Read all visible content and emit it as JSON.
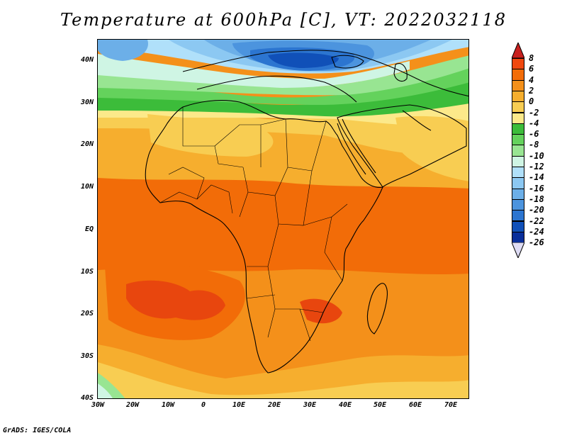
{
  "title": "Temperature at 600hPa [C], VT: 2022032118",
  "credit": "GrADS: IGES/COLA",
  "lat_labels": [
    "40N",
    "30N",
    "20N",
    "10N",
    "EQ",
    "10S",
    "20S",
    "30S",
    "40S"
  ],
  "lon_labels": [
    "30W",
    "20W",
    "10W",
    "0",
    "10E",
    "20E",
    "30E",
    "40E",
    "50E",
    "60E",
    "70E"
  ],
  "extent": {
    "lon_min": -30,
    "lon_max": 75,
    "lat_min": -40,
    "lat_max": 45
  },
  "colorbar": {
    "labels": [
      "8",
      "6",
      "4",
      "2",
      "0",
      "-2",
      "-4",
      "-6",
      "-8",
      "-10",
      "-12",
      "-14",
      "-16",
      "-18",
      "-20",
      "-22",
      "-24",
      "-26"
    ],
    "colors": [
      "#c8201e",
      "#f0480f",
      "#f26c08",
      "#f4901a",
      "#f6ae2e",
      "#f8cd52",
      "#fce98a",
      "#3cbc3a",
      "#64d25c",
      "#98e592",
      "#cff5e4",
      "#b0e0fa",
      "#8cc8f2",
      "#6cafe8",
      "#4c94de",
      "#2c75d0",
      "#1050b8",
      "#082e9a",
      "#0a1a6e"
    ],
    "over_color": "#c8201e",
    "under_color": "#dedcf4"
  },
  "field_colors": {
    "background": "#f4901a",
    "warm": "#f26c08",
    "hot": "#e8460e",
    "mild": "#f6ae2e",
    "cool": "#f8cd52",
    "cooler": "#fce98a",
    "green_dark": "#3cbc3a",
    "green": "#64d25c",
    "green_light": "#98e592",
    "cyan_light": "#cff5e4",
    "blue_pale": "#b0e0fa",
    "blue_1": "#8cc8f2",
    "blue_2": "#6cafe8",
    "blue_3": "#4c94de",
    "blue_4": "#2c75d0",
    "blue_5": "#1050b8"
  }
}
